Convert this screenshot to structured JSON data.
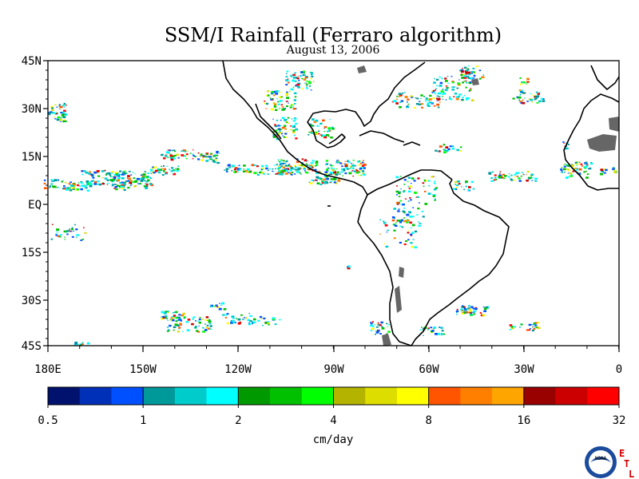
{
  "header": {
    "title": "SSM/I Rainfall (Ferraro algorithm)",
    "date": "August 13, 2006"
  },
  "map": {
    "lat_labels": [
      "45N",
      "30N",
      "15N",
      "EQ",
      "15S",
      "30S",
      "45S"
    ],
    "lon_labels": [
      "180E",
      "150W",
      "120W",
      "90W",
      "60W",
      "30W",
      "0"
    ]
  },
  "colorbar": {
    "colors": [
      "#00126e",
      "#0030b8",
      "#0050ff",
      "#009999",
      "#00cccc",
      "#00ffff",
      "#009900",
      "#00c000",
      "#00ff00",
      "#b3b300",
      "#dddd00",
      "#ffff00",
      "#ff5500",
      "#ff8000",
      "#ffa500",
      "#990000",
      "#cc0000",
      "#ff0000"
    ],
    "tick_labels": [
      "0.5",
      "1",
      "2",
      "4",
      "8",
      "16",
      "32"
    ],
    "unit": "cm/day"
  },
  "logo": {
    "noaa_text": "NOAA",
    "letters": [
      "E",
      "T",
      "L"
    ]
  }
}
